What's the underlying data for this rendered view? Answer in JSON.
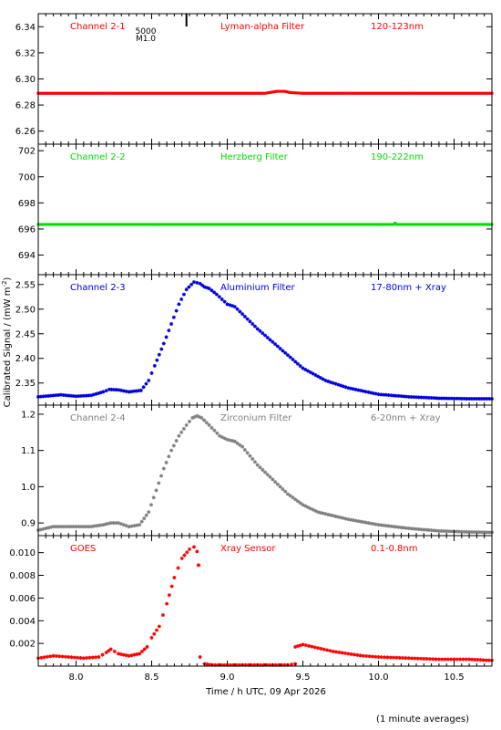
{
  "chart_data": {
    "type": "scatter",
    "xlabel": "Time / h UTC, 09 Apr 2026",
    "ylabel": "Calibrated Signal / (mW m",
    "ylabel_sup": "-2",
    "ylabel_close": ")",
    "footnote": "(1 minute averages)",
    "xlim": [
      7.75,
      10.75
    ],
    "xticks": [
      8.0,
      8.5,
      9.0,
      9.5,
      10.0,
      10.5
    ],
    "xtick_labels": [
      "8.0",
      "8.5",
      "9.0",
      "9.5",
      "10.0",
      "10.5"
    ],
    "flare_marker": {
      "x": 8.73,
      "class_label": "M1.0",
      "number_label": "5000"
    },
    "panels": [
      {
        "name": "Channel 2-1",
        "filter": "Lyman-alpha Filter",
        "band": "120-123nm",
        "color": "#ff0000",
        "ylim": [
          6.25,
          6.35
        ],
        "yticks": [
          6.26,
          6.28,
          6.3,
          6.32,
          6.34
        ],
        "ytick_labels": [
          "6.26",
          "6.28",
          "6.30",
          "6.32",
          "6.34"
        ],
        "series": {
          "x": [
            7.75,
            9.25,
            9.33,
            9.38,
            9.42,
            9.5,
            10.75
          ],
          "y": [
            6.289,
            6.289,
            6.2905,
            6.2905,
            6.2895,
            6.289,
            6.289
          ]
        }
      },
      {
        "name": "Channel 2-2",
        "filter": "Herzberg Filter",
        "band": "190-222nm",
        "color": "#00dd00",
        "ylim": [
          692.5,
          702.5
        ],
        "yticks": [
          694,
          696,
          698,
          700,
          702
        ],
        "ytick_labels": [
          "694",
          "696",
          "698",
          "700",
          "702"
        ],
        "series": {
          "x": [
            7.75,
            10.1,
            10.11,
            10.12,
            10.75
          ],
          "y": [
            696.35,
            696.35,
            696.45,
            696.35,
            696.35
          ]
        }
      },
      {
        "name": "Channel 2-3",
        "filter": "Aluminium Filter",
        "band": "17-80nm + Xray",
        "color": "#0000dd",
        "ylim": [
          2.305,
          2.57
        ],
        "yticks": [
          2.35,
          2.4,
          2.45,
          2.5,
          2.55
        ],
        "ytick_labels": [
          "2.35",
          "2.40",
          "2.45",
          "2.50",
          "2.55"
        ],
        "series": {
          "x": [
            7.75,
            7.9,
            8.0,
            8.1,
            8.18,
            8.22,
            8.28,
            8.35,
            8.43,
            8.48,
            8.52,
            8.58,
            8.63,
            8.68,
            8.73,
            8.78,
            8.82,
            8.85,
            8.88,
            8.93,
            9.0,
            9.05,
            9.1,
            9.2,
            9.35,
            9.5,
            9.65,
            9.8,
            10.0,
            10.2,
            10.4,
            10.6,
            10.75
          ],
          "y": [
            2.322,
            2.326,
            2.323,
            2.325,
            2.332,
            2.337,
            2.336,
            2.332,
            2.335,
            2.355,
            2.385,
            2.43,
            2.47,
            2.51,
            2.54,
            2.555,
            2.552,
            2.545,
            2.542,
            2.53,
            2.51,
            2.505,
            2.49,
            2.46,
            2.42,
            2.38,
            2.355,
            2.34,
            2.327,
            2.322,
            2.319,
            2.318,
            2.318
          ]
        }
      },
      {
        "name": "Channel 2-4",
        "filter": "Zirconium Filter",
        "band": "6-20nm + Xray",
        "color": "#808080",
        "ylim": [
          0.865,
          1.225
        ],
        "yticks": [
          0.9,
          1.0,
          1.1,
          1.2
        ],
        "ytick_labels": [
          "0.9",
          "1.0",
          "1.1",
          "1.2"
        ],
        "series": {
          "x": [
            7.75,
            7.85,
            7.95,
            8.1,
            8.18,
            8.23,
            8.28,
            8.35,
            8.42,
            8.48,
            8.53,
            8.58,
            8.63,
            8.68,
            8.73,
            8.77,
            8.8,
            8.83,
            8.88,
            8.95,
            9.0,
            9.05,
            9.1,
            9.2,
            9.3,
            9.4,
            9.5,
            9.6,
            9.8,
            10.0,
            10.2,
            10.4,
            10.6,
            10.75
          ],
          "y": [
            0.88,
            0.89,
            0.89,
            0.89,
            0.895,
            0.9,
            0.9,
            0.89,
            0.895,
            0.93,
            0.99,
            1.05,
            1.1,
            1.14,
            1.17,
            1.19,
            1.195,
            1.19,
            1.17,
            1.14,
            1.13,
            1.125,
            1.11,
            1.06,
            1.02,
            0.98,
            0.95,
            0.93,
            0.91,
            0.895,
            0.885,
            0.878,
            0.875,
            0.874
          ]
        }
      },
      {
        "name": "GOES",
        "filter": "Xray Sensor",
        "band": "0.1-0.8nm",
        "color": "#ff0000",
        "ylim": [
          0.0,
          0.0115
        ],
        "yticks": [
          0.002,
          0.004,
          0.006,
          0.008,
          0.01
        ],
        "ytick_labels": [
          "0.002",
          "0.004",
          "0.006",
          "0.008",
          "0.010"
        ],
        "series": [
          {
            "x": [
              7.75,
              7.85,
              7.95,
              8.05,
              8.15,
              8.2,
              8.23,
              8.28,
              8.35,
              8.42,
              8.47,
              8.5,
              8.55,
              8.6,
              8.65,
              8.7,
              8.75,
              8.78,
              8.8
            ],
            "y": [
              0.0007,
              0.0009,
              0.0008,
              0.0007,
              0.0008,
              0.0012,
              0.0015,
              0.0011,
              0.0009,
              0.0011,
              0.0017,
              0.0025,
              0.0035,
              0.0055,
              0.0078,
              0.0095,
              0.0103,
              0.0105,
              0.0101
            ]
          },
          {
            "x": [
              8.81
            ],
            "y": [
              0.0089
            ]
          },
          {
            "x": [
              8.82,
              8.85,
              8.9,
              9.0,
              9.2,
              9.4,
              9.45
            ],
            "y": [
              0.0008,
              0.0002,
              0.0001,
              0.0001,
              0.0001,
              0.0001,
              0.0002
            ]
          },
          {
            "x": [
              9.45,
              9.5,
              9.6,
              9.7,
              9.8,
              9.9,
              10.0,
              10.2,
              10.4,
              10.6,
              10.75
            ],
            "y": [
              0.0017,
              0.0019,
              0.0016,
              0.0013,
              0.0011,
              0.0009,
              0.0008,
              0.0007,
              0.0006,
              0.0006,
              0.0005
            ]
          }
        ]
      }
    ]
  }
}
